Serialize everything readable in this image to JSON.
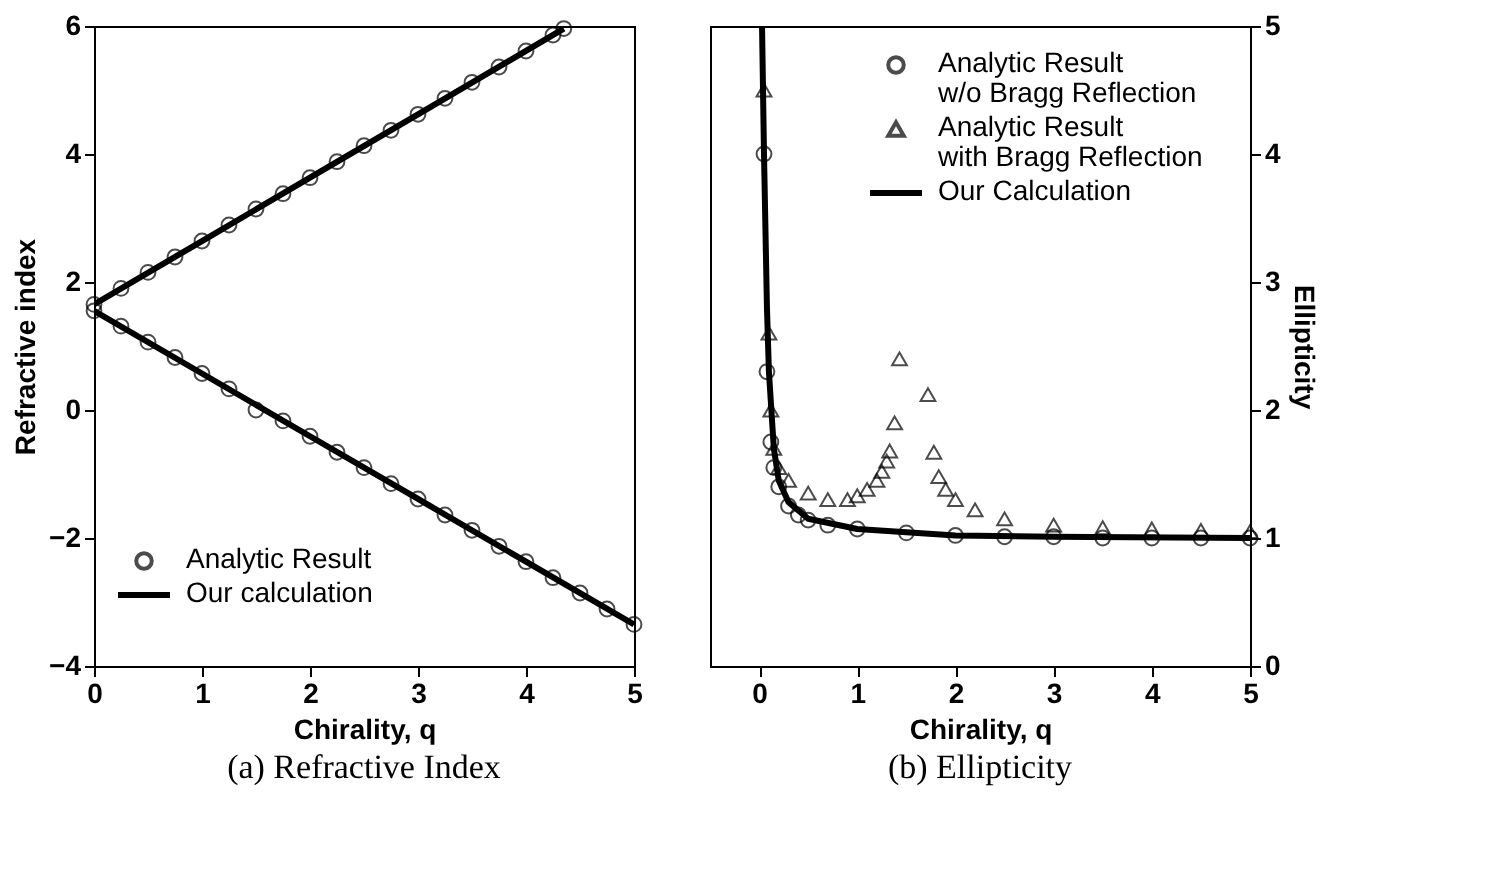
{
  "chart_data": [
    {
      "type": "line",
      "title": "(a) Refractive Index",
      "xlabel": "Chirality, q",
      "ylabel": "Refractive index",
      "xlim": [
        0,
        5
      ],
      "xticks": [
        0,
        1,
        2,
        3,
        4,
        5
      ],
      "ylim": [
        -4,
        6
      ],
      "yticks": [
        -4,
        -2,
        0,
        2,
        4,
        6
      ],
      "grid": false,
      "legend": "bottom left",
      "series": [
        {
          "name": "Analytic Result",
          "type": "scatter",
          "marker": "circle",
          "color": "#000000",
          "x": [
            0,
            0.25,
            0.5,
            0.75,
            1,
            1.25,
            1.5,
            1.75,
            2,
            2.25,
            2.5,
            2.75,
            3,
            3.25,
            3.5,
            3.75,
            4,
            4.25,
            4.35,
            0,
            0.25,
            0.5,
            0.75,
            1,
            1.25,
            1.5,
            1.75,
            2,
            2.25,
            2.5,
            2.75,
            3,
            3.25,
            3.5,
            3.75,
            4,
            4.25,
            4.5,
            4.75,
            5
          ],
          "values": [
            1.65,
            1.9,
            2.15,
            2.39,
            2.64,
            2.89,
            3.14,
            3.38,
            3.63,
            3.88,
            4.13,
            4.37,
            4.62,
            4.87,
            5.12,
            5.36,
            5.61,
            5.86,
            5.96,
            1.55,
            1.31,
            1.06,
            0.82,
            0.57,
            0.33,
            0.0,
            -0.17,
            -0.41,
            -0.66,
            -0.9,
            -1.15,
            -1.39,
            -1.64,
            -1.88,
            -2.13,
            -2.37,
            -2.62,
            -2.86,
            -3.11,
            -3.35
          ]
        },
        {
          "name": "Our calculation",
          "color": "#000000",
          "x": [
            0,
            1,
            2,
            3,
            4,
            4.35
          ],
          "values": [
            1.65,
            2.64,
            3.63,
            4.62,
            5.61,
            5.96
          ]
        },
        {
          "color": "#000000",
          "x": [
            0,
            1,
            2,
            3,
            4,
            5
          ],
          "values": [
            1.55,
            0.57,
            -0.41,
            -1.39,
            -2.37,
            -3.35
          ]
        }
      ]
    },
    {
      "type": "line",
      "title": "(b) Ellipticity",
      "xlabel": "Chirality, q",
      "y2label": "Ellipticity",
      "xlim": [
        -0.5,
        5
      ],
      "xticks": [
        0,
        1,
        2,
        3,
        4,
        5
      ],
      "y2lim": [
        0,
        5
      ],
      "y2ticks": [
        0,
        1,
        2,
        3,
        4,
        5
      ],
      "grid": false,
      "legend": "top right",
      "series": [
        {
          "name": "Analytic Result\nw/o Bragg Reflection",
          "type": "scatter",
          "marker": "circle",
          "color": "#000000",
          "axis": "y2",
          "x": [
            0.05,
            0.08,
            0.12,
            0.15,
            0.2,
            0.3,
            0.4,
            0.5,
            0.7,
            1.0,
            1.5,
            2,
            2.5,
            3,
            3.5,
            4,
            4.5,
            5
          ],
          "values": [
            4.0,
            2.3,
            1.75,
            1.55,
            1.4,
            1.25,
            1.18,
            1.14,
            1.1,
            1.07,
            1.04,
            1.02,
            1.01,
            1.01,
            1.0,
            1.0,
            1.0,
            1.0
          ]
        },
        {
          "name": "Analytic Result\nwith Bragg Reflection",
          "type": "scatter",
          "marker": "triangle",
          "color": "#000000",
          "axis": "y2",
          "x": [
            0.05,
            0.1,
            0.12,
            0.15,
            0.2,
            0.3,
            0.5,
            0.7,
            0.9,
            1.0,
            1.1,
            1.2,
            1.25,
            1.3,
            1.33,
            1.38,
            1.43,
            1.72,
            1.78,
            1.83,
            1.9,
            2,
            2.2,
            2.5,
            3,
            3.5,
            4,
            4.5,
            5
          ],
          "values": [
            4.5,
            2.6,
            2.0,
            1.7,
            1.55,
            1.45,
            1.35,
            1.3,
            1.3,
            1.33,
            1.38,
            1.45,
            1.52,
            1.6,
            1.68,
            1.9,
            2.4,
            2.12,
            1.67,
            1.48,
            1.38,
            1.3,
            1.22,
            1.15,
            1.1,
            1.08,
            1.07,
            1.06,
            1.05
          ]
        },
        {
          "name": "Our Calculation",
          "color": "#000000",
          "axis": "y2",
          "x": [
            0.03,
            0.05,
            0.08,
            0.1,
            0.15,
            0.2,
            0.3,
            0.5,
            1,
            2,
            3,
            5
          ],
          "values": [
            5.0,
            4.0,
            2.8,
            2.3,
            1.7,
            1.45,
            1.28,
            1.15,
            1.07,
            1.02,
            1.01,
            1.0
          ]
        }
      ]
    }
  ]
}
